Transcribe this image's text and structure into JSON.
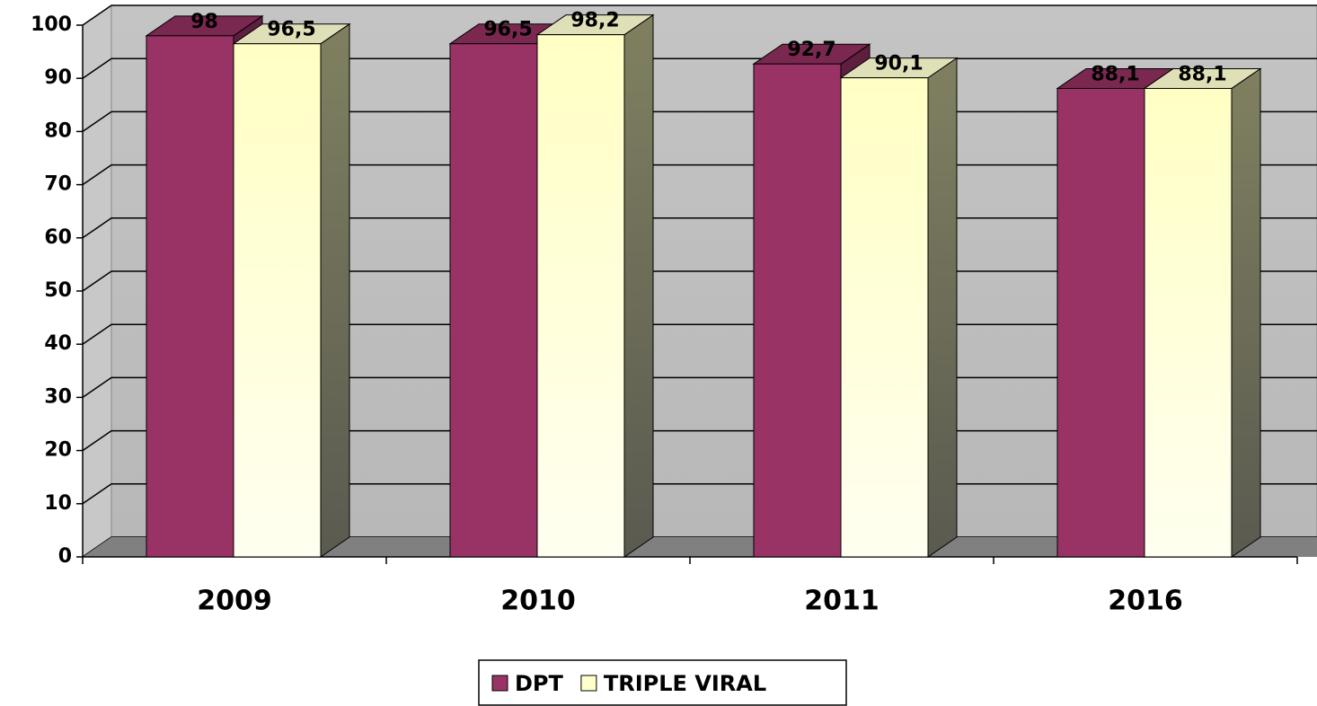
{
  "chart_data": {
    "type": "bar3d",
    "categories": [
      "2009",
      "2010",
      "2011",
      "2016"
    ],
    "series": [
      {
        "name": "DPT",
        "color": "#993366",
        "values": [
          98,
          96.5,
          92.7,
          88.1
        ],
        "value_labels": [
          "98",
          "96,5",
          "92,7",
          "88,1"
        ]
      },
      {
        "name": "TRIPLE VIRAL",
        "color": "#ffffcc",
        "values": [
          96.5,
          98.2,
          90.1,
          88.1
        ],
        "value_labels": [
          "96,5",
          "98,2",
          "90,1",
          "88,1"
        ]
      }
    ],
    "ylim": [
      0,
      100
    ],
    "yticks": [
      0,
      10,
      20,
      30,
      40,
      50,
      60,
      70,
      80,
      90,
      100
    ],
    "grid": true,
    "legend": "bottom"
  }
}
